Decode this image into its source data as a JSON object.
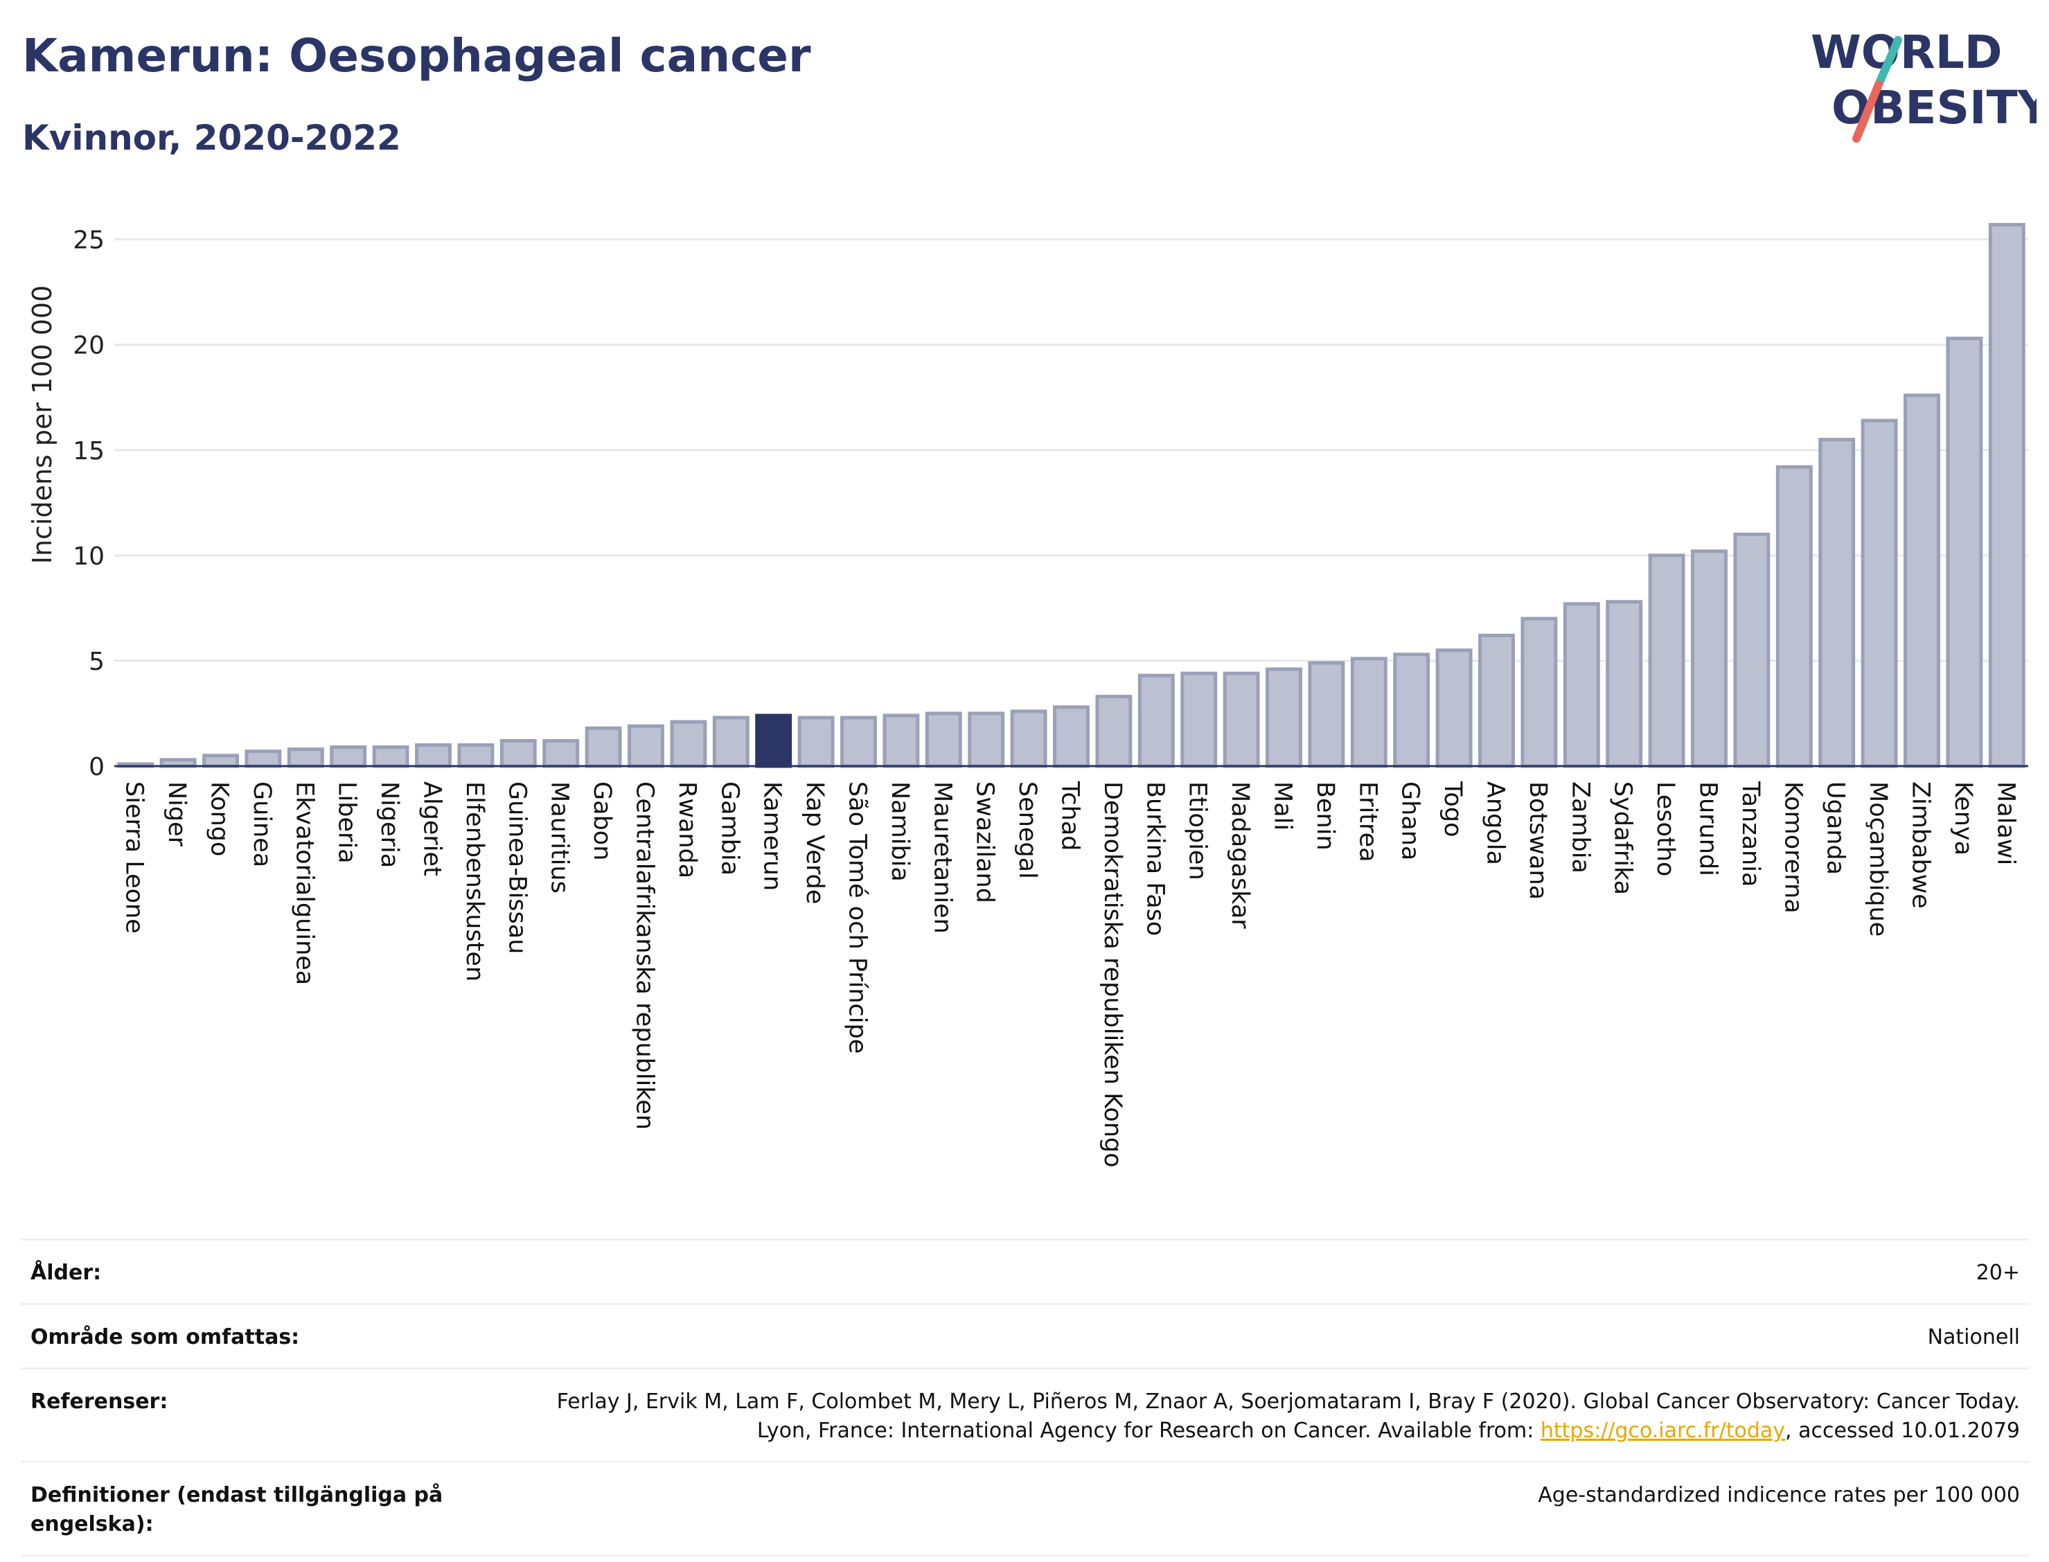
{
  "header": {
    "title": "Kamerun: Oesophageal cancer",
    "subtitle": "Kvinnor, 2020-2022",
    "logo_line1": "WORLD",
    "logo_line2": "OBESITY"
  },
  "colors": {
    "bar": "#bcc1d1",
    "bar_stroke": "#9aa0b8",
    "highlight": "#2b3566",
    "text": "#2b3566",
    "link": "#e8a700",
    "grid": "#e6e8ee",
    "logo_teal": "#3fb8b0",
    "logo_coral": "#e8675a"
  },
  "chart_data": {
    "type": "bar",
    "ylabel": "Incidens per 100 000",
    "ylim": [
      0,
      26.5
    ],
    "yticks": [
      0,
      5,
      10,
      15,
      20,
      25
    ],
    "grid": true,
    "highlight": "Kamerun",
    "categories": [
      "Sierra Leone",
      "Niger",
      "Kongo",
      "Guinea",
      "Ekvatorialguinea",
      "Liberia",
      "Nigeria",
      "Algeriet",
      "Elfenbenskusten",
      "Guinea-Bissau",
      "Mauritius",
      "Gabon",
      "Centralafrikanska republiken",
      "Rwanda",
      "Gambia",
      "Kamerun",
      "Kap Verde",
      "São Tomé och Príncipe",
      "Namibia",
      "Mauretanien",
      "Swaziland",
      "Senegal",
      "Tchad",
      "Demokratiska republiken Kongo",
      "Burkina Faso",
      "Etiopien",
      "Madagaskar",
      "Mali",
      "Benin",
      "Eritrea",
      "Ghana",
      "Togo",
      "Angola",
      "Botswana",
      "Zambia",
      "Sydafrika",
      "Lesotho",
      "Burundi",
      "Tanzania",
      "Komorerna",
      "Uganda",
      "Moçambique",
      "Zimbabwe",
      "Kenya",
      "Malawi"
    ],
    "values": [
      0.1,
      0.3,
      0.5,
      0.7,
      0.8,
      0.9,
      0.9,
      1.0,
      1.0,
      1.2,
      1.2,
      1.8,
      1.9,
      2.1,
      2.3,
      2.4,
      2.3,
      2.3,
      2.4,
      2.5,
      2.5,
      2.6,
      2.8,
      3.3,
      4.3,
      4.4,
      4.4,
      4.6,
      4.9,
      5.1,
      5.3,
      5.5,
      6.2,
      7.0,
      7.7,
      7.8,
      10.0,
      10.2,
      11.0,
      14.2,
      15.5,
      16.4,
      17.6,
      20.3,
      25.7
    ]
  },
  "info": {
    "rows": [
      {
        "label": "Ålder:",
        "value": "20+"
      },
      {
        "label": "Område som omfattas:",
        "value": "Nationell"
      },
      {
        "label": "Referenser:",
        "value": "Ferlay J, Ervik M, Lam F, Colombet M, Mery L, Piñeros M, Znaor A, Soerjomataram I, Bray F (2020). Global Cancer Observatory: Cancer Today. Lyon, France: International Agency for Research on Cancer. Available from: ",
        "link": "https://gco.iarc.fr/today",
        "value_after": ", accessed 10.01.2079"
      },
      {
        "label": "Definitioner (endast tillgängliga på engelska):",
        "value": "Age-standardized indicence rates per 100 000"
      }
    ]
  }
}
